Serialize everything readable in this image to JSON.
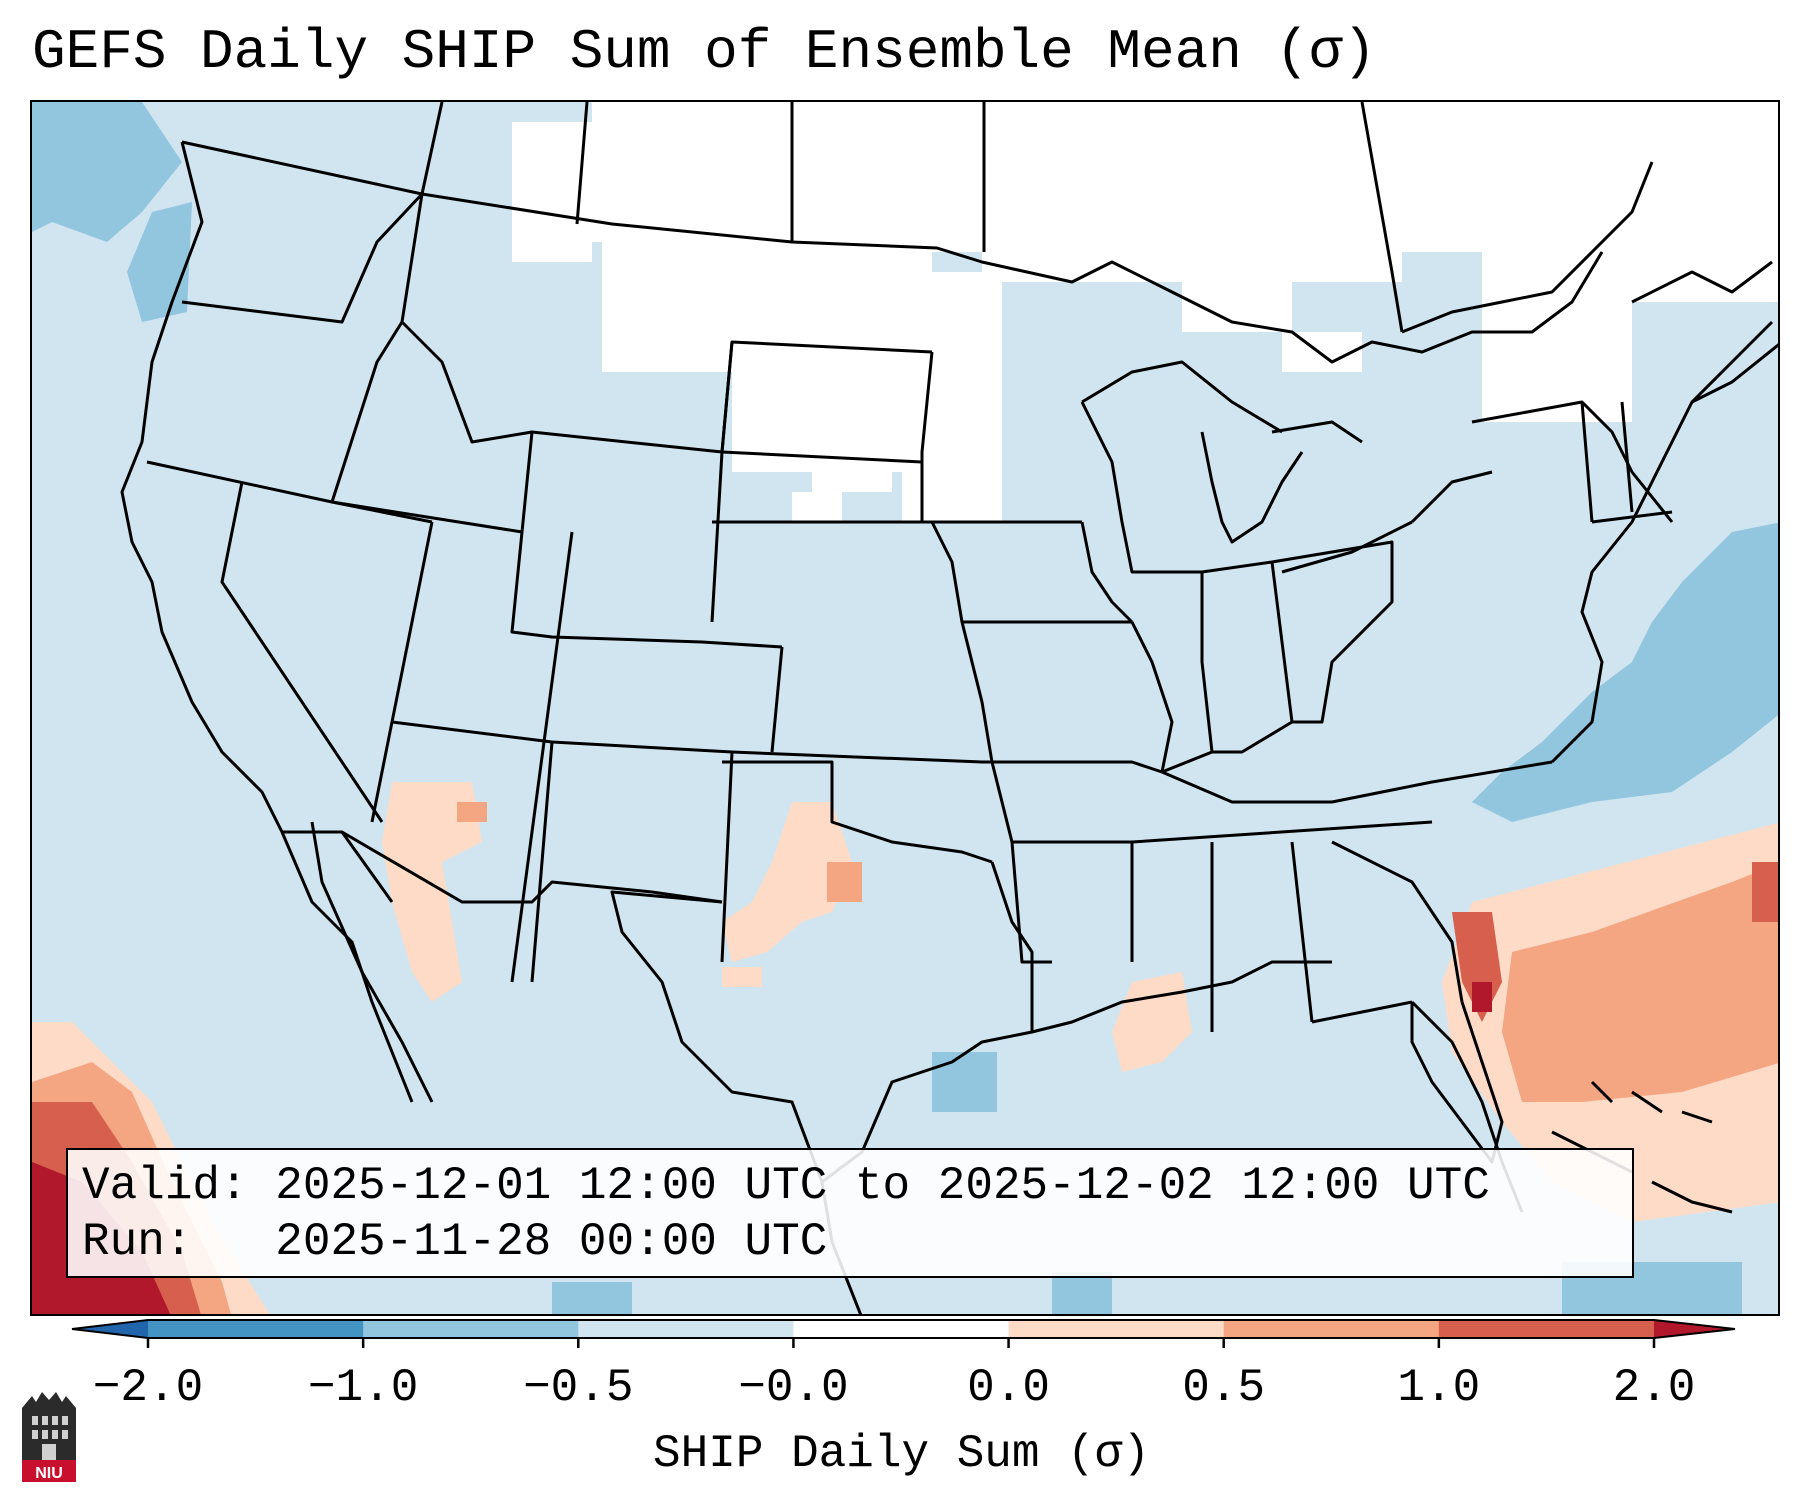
{
  "title": "GEFS Daily SHIP Sum of Ensemble Mean (σ)",
  "info": {
    "valid": "Valid: 2025-12-01 12:00 UTC to 2025-12-02 12:00 UTC",
    "run": "Run:   2025-11-28 00:00 UTC"
  },
  "colorbar": {
    "label": "SHIP Daily Sum (σ)",
    "ticks": [
      "−2.0",
      "−1.0",
      "−0.5",
      "−0.0",
      "0.0",
      "0.5",
      "1.0",
      "2.0"
    ],
    "colors": [
      "#2166ac",
      "#4393c3",
      "#92c5de",
      "#d1e5f0",
      "#ffffff",
      "#fddbc7",
      "#f4a582",
      "#d6604d",
      "#b2182b"
    ],
    "extend": "both"
  },
  "logo_text": "NIU"
}
